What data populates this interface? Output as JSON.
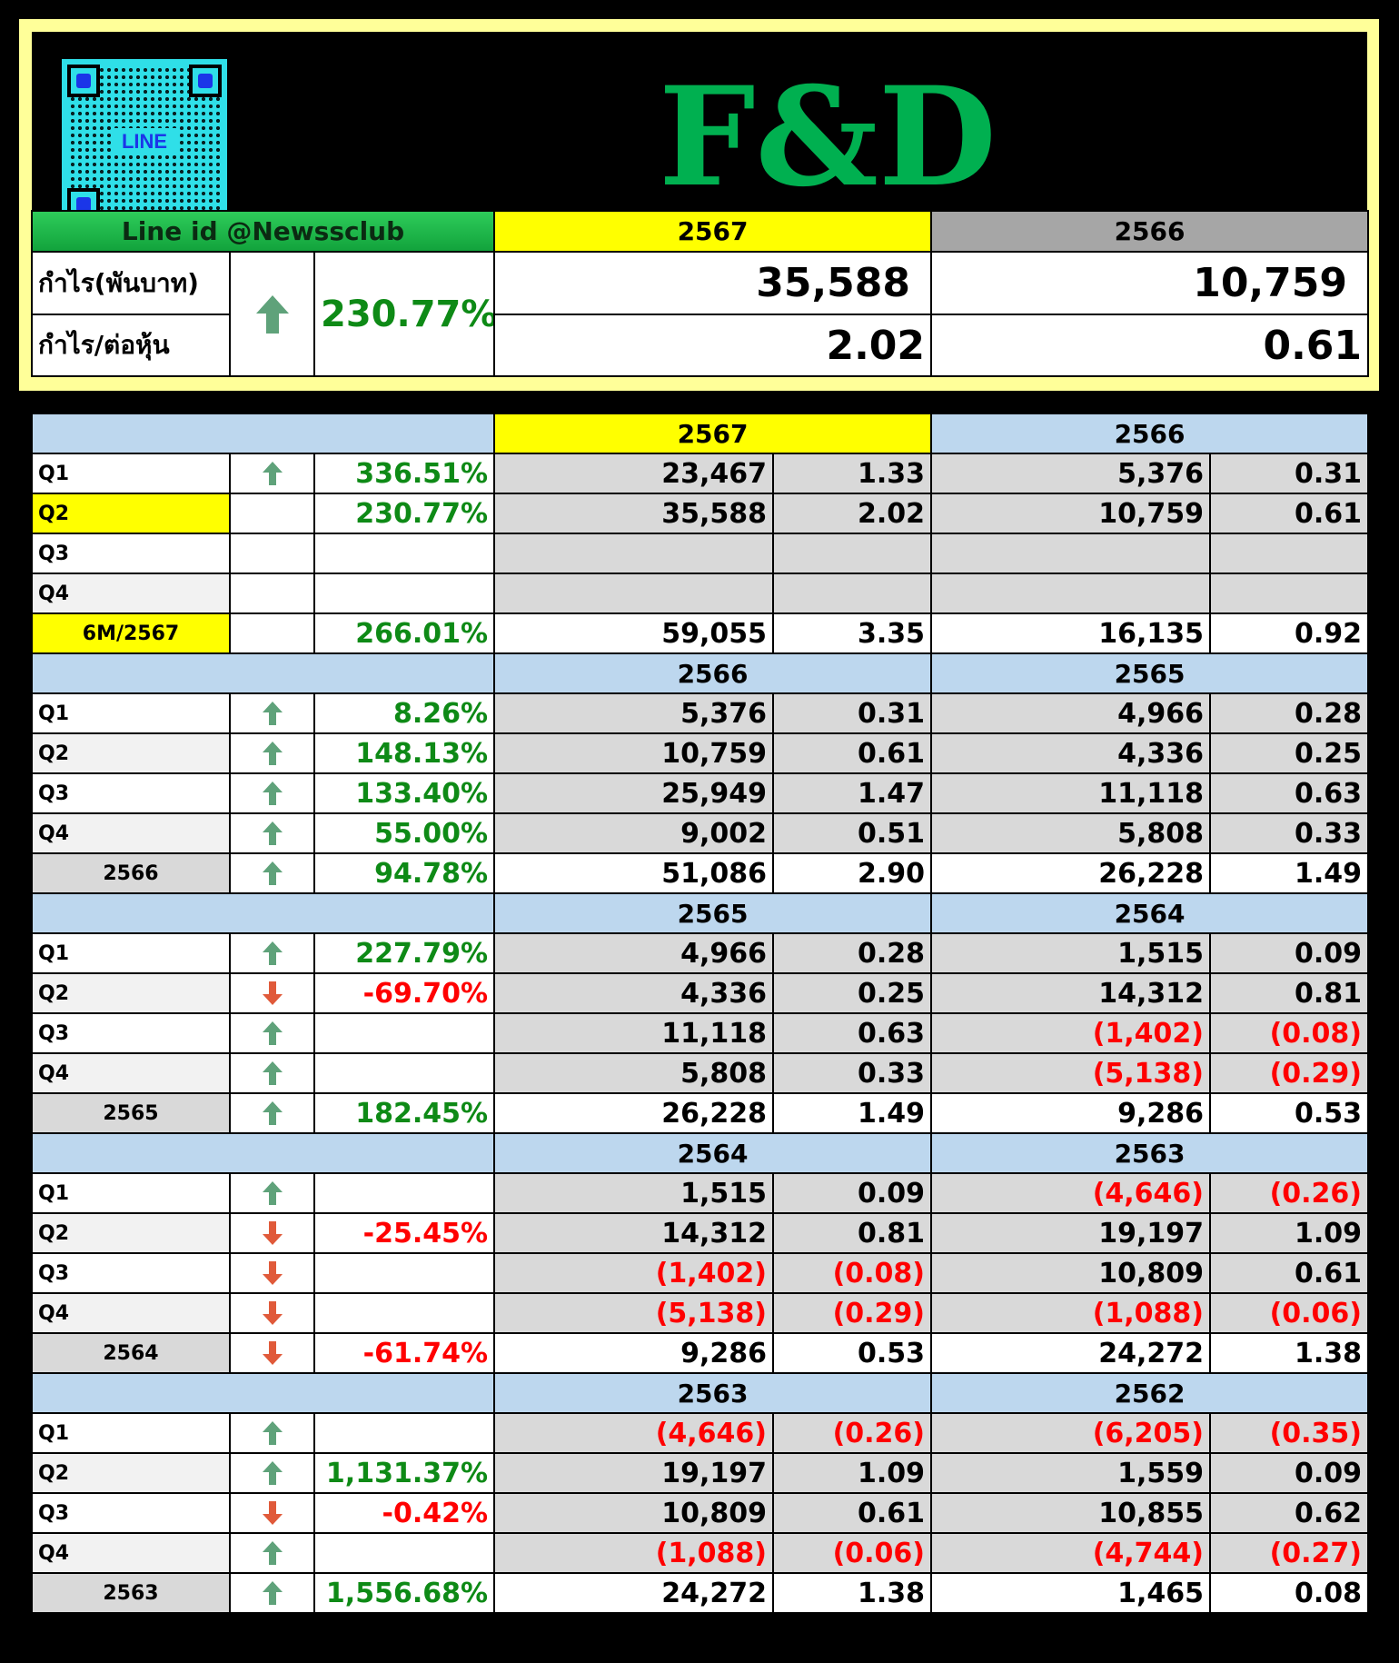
{
  "logo": "F&D",
  "qr_label": "LINE",
  "summary": {
    "line_id": "Line id @Newssclub",
    "year_a": "2567",
    "year_b": "2566",
    "profit_label": "กำไร(พันบาท)",
    "eps_label": "กำไร/ต่อหุ้น",
    "arrow": "up",
    "change": "230.77%",
    "profit_a": "35,588",
    "profit_b": "10,759",
    "eps_a": "2.02",
    "eps_b": "0.61"
  },
  "sections": [
    {
      "year_a": "2567",
      "year_b": "2566",
      "highlight": true,
      "rows": [
        {
          "label": "Q1",
          "arrow": "up",
          "change": "336.51%",
          "a": "23,467",
          "ae": "1.33",
          "b": "5,376",
          "be": "0.31"
        },
        {
          "label": "Q2",
          "arrow": "",
          "change": "230.77%",
          "a": "35,588",
          "ae": "2.02",
          "b": "10,759",
          "be": "0.61",
          "label_bg": "yellow"
        },
        {
          "label": "Q3",
          "arrow": "",
          "change": "",
          "a": "",
          "ae": "",
          "b": "",
          "be": ""
        },
        {
          "label": "Q4",
          "arrow": "",
          "change": "",
          "a": "",
          "ae": "",
          "b": "",
          "be": ""
        },
        {
          "label": "6M/2567",
          "arrow": "",
          "change": "266.01%",
          "a": "59,055",
          "ae": "3.35",
          "b": "16,135",
          "be": "0.92",
          "total": true,
          "label_bg": "yellow"
        }
      ]
    },
    {
      "year_a": "2566",
      "year_b": "2565",
      "rows": [
        {
          "label": "Q1",
          "arrow": "up",
          "change": "8.26%",
          "a": "5,376",
          "ae": "0.31",
          "b": "4,966",
          "be": "0.28"
        },
        {
          "label": "Q2",
          "arrow": "up",
          "change": "148.13%",
          "a": "10,759",
          "ae": "0.61",
          "b": "4,336",
          "be": "0.25"
        },
        {
          "label": "Q3",
          "arrow": "up",
          "change": "133.40%",
          "a": "25,949",
          "ae": "1.47",
          "b": "11,118",
          "be": "0.63"
        },
        {
          "label": "Q4",
          "arrow": "up",
          "change": "55.00%",
          "a": "9,002",
          "ae": "0.51",
          "b": "5,808",
          "be": "0.33"
        },
        {
          "label": "2566",
          "arrow": "up",
          "change": "94.78%",
          "a": "51,086",
          "ae": "2.90",
          "b": "26,228",
          "be": "1.49",
          "total": true
        }
      ]
    },
    {
      "year_a": "2565",
      "year_b": "2564",
      "rows": [
        {
          "label": "Q1",
          "arrow": "up",
          "change": "227.79%",
          "a": "4,966",
          "ae": "0.28",
          "b": "1,515",
          "be": "0.09"
        },
        {
          "label": "Q2",
          "arrow": "down",
          "change": "-69.70%",
          "a": "4,336",
          "ae": "0.25",
          "b": "14,312",
          "be": "0.81"
        },
        {
          "label": "Q3",
          "arrow": "up",
          "change": "",
          "a": "11,118",
          "ae": "0.63",
          "b": "(1,402)",
          "be": "(0.08)"
        },
        {
          "label": "Q4",
          "arrow": "up",
          "change": "",
          "a": "5,808",
          "ae": "0.33",
          "b": "(5,138)",
          "be": "(0.29)"
        },
        {
          "label": "2565",
          "arrow": "up",
          "change": "182.45%",
          "a": "26,228",
          "ae": "1.49",
          "b": "9,286",
          "be": "0.53",
          "total": true
        }
      ]
    },
    {
      "year_a": "2564",
      "year_b": "2563",
      "rows": [
        {
          "label": "Q1",
          "arrow": "up",
          "change": "",
          "a": "1,515",
          "ae": "0.09",
          "b": "(4,646)",
          "be": "(0.26)"
        },
        {
          "label": "Q2",
          "arrow": "down",
          "change": "-25.45%",
          "a": "14,312",
          "ae": "0.81",
          "b": "19,197",
          "be": "1.09"
        },
        {
          "label": "Q3",
          "arrow": "down",
          "change": "",
          "a": "(1,402)",
          "ae": "(0.08)",
          "b": "10,809",
          "be": "0.61"
        },
        {
          "label": "Q4",
          "arrow": "down",
          "change": "",
          "a": "(5,138)",
          "ae": "(0.29)",
          "b": "(1,088)",
          "be": "(0.06)"
        },
        {
          "label": "2564",
          "arrow": "down",
          "change": "-61.74%",
          "a": "9,286",
          "ae": "0.53",
          "b": "24,272",
          "be": "1.38",
          "total": true
        }
      ]
    },
    {
      "year_a": "2563",
      "year_b": "2562",
      "rows": [
        {
          "label": "Q1",
          "arrow": "up",
          "change": "",
          "a": "(4,646)",
          "ae": "(0.26)",
          "b": "(6,205)",
          "be": "(0.35)"
        },
        {
          "label": "Q2",
          "arrow": "up",
          "change": "1,131.37%",
          "a": "19,197",
          "ae": "1.09",
          "b": "1,559",
          "be": "0.09"
        },
        {
          "label": "Q3",
          "arrow": "down",
          "change": "-0.42%",
          "a": "10,809",
          "ae": "0.61",
          "b": "10,855",
          "be": "0.62"
        },
        {
          "label": "Q4",
          "arrow": "up",
          "change": "",
          "a": "(1,088)",
          "ae": "(0.06)",
          "b": "(4,744)",
          "be": "(0.27)"
        },
        {
          "label": "2563",
          "arrow": "up",
          "change": "1,556.68%",
          "a": "24,272",
          "ae": "1.38",
          "b": "1,465",
          "be": "0.08",
          "total": true
        }
      ]
    }
  ],
  "colors": {
    "yellow": "#ffff00",
    "blue": "#bdd7ee",
    "gray": "#d9d9d9",
    "green": "#0e8a16",
    "red": "#ff0000",
    "up_arrow": "#5fa27a",
    "down_arrow": "#e05a3a"
  }
}
